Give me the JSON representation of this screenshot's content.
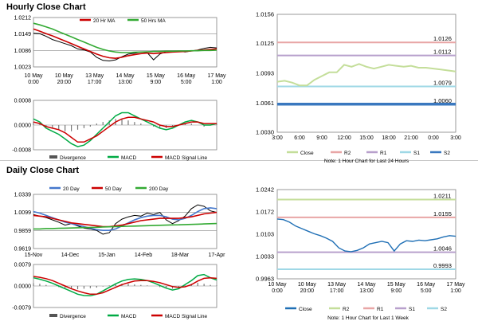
{
  "hourly_title": "Hourly Close Chart",
  "daily_title": "Daily Close Chart",
  "chart_data": [
    {
      "id": "hourly_price",
      "type": "line",
      "title": "",
      "ylim": [
        1.0023,
        1.0212
      ],
      "ytick_labels": [
        "1.0212",
        "1.0149",
        "1.0086",
        "1.0023"
      ],
      "xtick_labels": [
        "10 May\n0:00",
        "10 May\n20:00",
        "13 May\n17:00",
        "14 May\n13:00",
        "15 May\n9:00",
        "16 May\n5:00",
        "17 May\n1:00"
      ],
      "legend": [
        "20 Hr MA",
        "50 Hrs MA"
      ],
      "series": [
        {
          "name": "Close",
          "color": "#000000",
          "values": [
            1.0152,
            1.015,
            1.014,
            1.0128,
            1.012,
            1.0112,
            1.0104,
            1.0092,
            1.0088,
            1.008,
            1.006,
            1.0048,
            1.0046,
            1.005,
            1.0062,
            1.0072,
            1.0075,
            1.008,
            1.0078,
            1.005,
            1.0072,
            1.0082,
            1.008,
            1.0083,
            1.008,
            1.0084,
            1.0088,
            1.0094,
            1.0098,
            1.0096
          ]
        },
        {
          "name": "20 Hr MA",
          "color": "#cc0000",
          "values": [
            1.0168,
            1.016,
            1.015,
            1.0142,
            1.0132,
            1.0122,
            1.0112,
            1.0102,
            1.0092,
            1.0082,
            1.0072,
            1.0064,
            1.0058,
            1.0056,
            1.006,
            1.0066,
            1.007,
            1.0074,
            1.0076,
            1.0074,
            1.0076,
            1.0078,
            1.008,
            1.0081,
            1.0082,
            1.0084,
            1.0086,
            1.0088,
            1.009,
            1.0092
          ]
        },
        {
          "name": "50 Hrs MA",
          "color": "#33aa33",
          "values": [
            1.019,
            1.0184,
            1.0176,
            1.0168,
            1.0158,
            1.0148,
            1.0138,
            1.0128,
            1.0118,
            1.0108,
            1.0098,
            1.009,
            1.0084,
            1.008,
            1.0078,
            1.0078,
            1.0079,
            1.008,
            1.0081,
            1.0082,
            1.0082,
            1.0083,
            1.0083,
            1.0084,
            1.0084,
            1.0085,
            1.0085,
            1.0086,
            1.0086,
            1.0087
          ]
        }
      ]
    },
    {
      "id": "hourly_macd",
      "type": "line",
      "ylim": [
        -0.0008,
        0.0008
      ],
      "ytick_labels": [
        "0.0008",
        "0.0000",
        "-0.0008"
      ],
      "legend": [
        "Divergence",
        "MACD",
        "MACD Signal Line"
      ],
      "divergence": [
        0.0001,
        5e-05,
        -5e-05,
        -0.0001,
        -0.00015,
        -0.0002,
        -0.0002,
        -0.00015,
        -0.0001,
        -5e-05,
        5e-05,
        0.0001,
        0.00015,
        0.0002,
        0.0002,
        0.00015,
        0.0001,
        5e-05,
        0.0,
        -5e-05,
        -0.0001,
        -0.0001,
        -5e-05,
        0.0,
        5e-05,
        5e-05,
        0.0,
        -5e-05,
        0.0,
        5e-05
      ],
      "series": [
        {
          "name": "MACD",
          "color": "#00aa44",
          "values": [
            0.0002,
            0.0001,
            -0.0001,
            -0.0002,
            -0.0003,
            -0.00045,
            -0.0006,
            -0.0007,
            -0.00065,
            -0.0005,
            -0.0003,
            -0.0001,
            0.0001,
            0.0003,
            0.0004,
            0.0004,
            0.0003,
            0.0002,
            0.0001,
            0.0,
            -0.0001,
            -0.00015,
            -0.0001,
            0.0,
            0.0001,
            0.00015,
            0.0001,
            0.0,
            0.0,
            5e-05
          ]
        },
        {
          "name": "MACD Signal Line",
          "color": "#cc0000",
          "values": [
            0.0001,
            5e-05,
            -5e-05,
            -0.0001,
            -0.00015,
            -0.00025,
            -0.0004,
            -0.00055,
            -0.00055,
            -0.00045,
            -0.00035,
            -0.0002,
            -5e-05,
            0.0001,
            0.0002,
            0.00025,
            0.00025,
            0.0002,
            0.00015,
            0.0001,
            0.0,
            -5e-05,
            -5e-05,
            0.0,
            5e-05,
            0.0001,
            0.0001,
            5e-05,
            5e-05,
            5e-05
          ]
        }
      ]
    },
    {
      "id": "hourly_24h",
      "type": "line",
      "ylim": [
        1.003,
        1.0156
      ],
      "ytick_labels": [
        "1.0156",
        "1.0125",
        "1.0093",
        "1.0061",
        "1.0030"
      ],
      "xtick_labels": [
        "3:00",
        "6:00",
        "9:00",
        "12:00",
        "15:00",
        "18:00",
        "21:00",
        "0:00",
        "3:00"
      ],
      "levels": [
        {
          "name": "R2",
          "value": 1.0126,
          "label": "1.0126",
          "color": "#e8a6a6"
        },
        {
          "name": "R1",
          "value": 1.0112,
          "label": "1.0112",
          "color": "#b8a0cc"
        },
        {
          "name": "S1",
          "value": 1.0079,
          "label": "1.0079",
          "color": "#9fd8e6"
        },
        {
          "name": "S2",
          "value": 1.006,
          "label": "1.0060",
          "color": "#3a78bf"
        }
      ],
      "series": [
        {
          "name": "Close",
          "color": "#c4de9a",
          "values": [
            1.0084,
            1.0085,
            1.0083,
            1.008,
            1.008,
            1.0086,
            1.009,
            1.0094,
            1.0094,
            1.0102,
            1.01,
            1.0103,
            1.01,
            1.0098,
            1.01,
            1.0102,
            1.0101,
            1.01,
            1.0101,
            1.0099,
            1.0099,
            1.0098,
            1.0097,
            1.0096,
            1.0095
          ]
        }
      ],
      "legend": [
        "Close",
        "R2",
        "R1",
        "S1",
        "S2"
      ],
      "note": "Note: 1 Hour Chart for Last 24 Hours"
    },
    {
      "id": "daily_price",
      "type": "line",
      "ylim": [
        0.9619,
        1.0339
      ],
      "ytick_labels": [
        "1.0339",
        "1.0099",
        "0.9859",
        "0.9619"
      ],
      "xtick_labels": [
        "15-Nov",
        "14-Dec",
        "15-Jan",
        "14-Feb",
        "18-Mar",
        "17-Apr"
      ],
      "legend": [
        "20 Day",
        "50 Day",
        "200 Day"
      ],
      "series": [
        {
          "name": "Close",
          "color": "#000000",
          "values": [
            1.007,
            1.005,
            1.003,
            1.0,
            0.997,
            0.993,
            0.995,
            0.992,
            0.989,
            0.988,
            0.986,
            0.981,
            0.983,
            0.995,
            1.001,
            1.004,
            1.006,
            1.005,
            1.009,
            1.007,
            1.01,
            1.0,
            0.995,
            0.999,
            1.005,
            1.015,
            1.02,
            1.018,
            1.012,
            1.01
          ]
        },
        {
          "name": "20 Day",
          "color": "#4477cc",
          "values": [
            1.011,
            1.009,
            1.006,
            1.003,
            1.0,
            0.997,
            0.995,
            0.993,
            0.991,
            0.989,
            0.987,
            0.986,
            0.986,
            0.988,
            0.992,
            0.996,
            1.0,
            1.003,
            1.005,
            1.006,
            1.006,
            1.004,
            1.001,
            1.0,
            1.002,
            1.006,
            1.011,
            1.015,
            1.016,
            1.015
          ]
        },
        {
          "name": "50 Day",
          "color": "#cc0000",
          "values": [
            1.006,
            1.005,
            1.004,
            1.002,
            1.0,
            0.998,
            0.996,
            0.995,
            0.994,
            0.993,
            0.992,
            0.991,
            0.991,
            0.992,
            0.993,
            0.995,
            0.997,
            0.999,
            1.0,
            1.001,
            1.002,
            1.002,
            1.002,
            1.002,
            1.003,
            1.004,
            1.006,
            1.008,
            1.009,
            1.01
          ]
        },
        {
          "name": "200 Day",
          "color": "#33aa33",
          "values": [
            0.988,
            0.988,
            0.9885,
            0.9885,
            0.9888,
            0.989,
            0.9892,
            0.9895,
            0.9897,
            0.99,
            0.9902,
            0.9905,
            0.9908,
            0.991,
            0.9913,
            0.9915,
            0.9918,
            0.992,
            0.9923,
            0.9925,
            0.9928,
            0.993,
            0.9933,
            0.9935,
            0.9938,
            0.994,
            0.9943,
            0.9946,
            0.9949,
            0.9952
          ]
        }
      ]
    },
    {
      "id": "daily_macd",
      "type": "line",
      "ylim": [
        -0.0079,
        0.0079
      ],
      "ytick_labels": [
        "0.0079",
        "0.0000",
        "-0.0079"
      ],
      "legend": [
        "Divergence",
        "MACD",
        "MACD Signal Line"
      ],
      "divergence": [
        0.001,
        0.0008,
        0.0004,
        0.0,
        -0.0004,
        -0.0008,
        -0.001,
        -0.0012,
        -0.001,
        -0.0008,
        -0.0006,
        -0.0002,
        0.0002,
        0.0006,
        0.0008,
        0.0008,
        0.0006,
        0.0004,
        0.0002,
        0.0,
        -0.0004,
        -0.0008,
        -0.001,
        -0.0006,
        0.0002,
        0.0008,
        0.0012,
        0.0008,
        0.0004,
        0.0002
      ],
      "series": [
        {
          "name": "MACD",
          "color": "#00aa44",
          "values": [
            0.003,
            0.0025,
            0.0018,
            0.001,
            0.0,
            -0.001,
            -0.002,
            -0.003,
            -0.0035,
            -0.0036,
            -0.003,
            -0.0018,
            -0.0005,
            0.0008,
            0.0018,
            0.0024,
            0.0026,
            0.0024,
            0.002,
            0.0012,
            0.0002,
            -0.0008,
            -0.0015,
            -0.001,
            0.0005,
            0.002,
            0.0038,
            0.0042,
            0.003,
            0.0022
          ]
        },
        {
          "name": "MACD Signal Line",
          "color": "#cc0000",
          "values": [
            0.0035,
            0.0032,
            0.0027,
            0.002,
            0.001,
            0.0,
            -0.001,
            -0.0018,
            -0.0025,
            -0.003,
            -0.003,
            -0.0025,
            -0.0015,
            -0.0005,
            0.0005,
            0.0012,
            0.0018,
            0.002,
            0.002,
            0.0017,
            0.0012,
            0.0005,
            -0.0002,
            -0.0005,
            -0.0003,
            0.0005,
            0.0018,
            0.0028,
            0.003,
            0.0028
          ]
        }
      ]
    },
    {
      "id": "daily_week",
      "type": "line",
      "ylim": [
        0.9963,
        1.0242
      ],
      "ytick_labels": [
        "1.0242",
        "1.0172",
        "1.0103",
        "1.0033",
        "0.9963"
      ],
      "xtick_labels": [
        "10 May\n0:00",
        "10 May\n20:00",
        "13 May\n17:00",
        "14 May\n13:00",
        "15 May\n9:00",
        "16 May\n5:00",
        "17 May\n1:00"
      ],
      "levels": [
        {
          "name": "R2",
          "value": 1.0211,
          "label": "1.0211",
          "color": "#c4de9a"
        },
        {
          "name": "R1",
          "value": 1.0155,
          "label": "1.0155",
          "color": "#e8a6a6"
        },
        {
          "name": "S1",
          "value": 1.0046,
          "label": "1.0046",
          "color": "#b8a0cc"
        },
        {
          "name": "S2",
          "value": 0.9993,
          "label": "0.9993",
          "color": "#9fd8e6"
        }
      ],
      "series": [
        {
          "name": "Close",
          "color": "#1f6fb5",
          "values": [
            1.015,
            1.0148,
            1.014,
            1.0128,
            1.012,
            1.0112,
            1.0104,
            1.0098,
            1.009,
            1.008,
            1.006,
            1.005,
            1.0048,
            1.0052,
            1.006,
            1.0072,
            1.0076,
            1.008,
            1.0076,
            1.005,
            1.0072,
            1.0082,
            1.008,
            1.0084,
            1.0082,
            1.0085,
            1.0088,
            1.0094,
            1.0098,
            1.0096
          ]
        }
      ],
      "legend": [
        "Close",
        "R2",
        "R1",
        "S1",
        "S2"
      ],
      "note": "Note: 1 Hour Chart for Last 1 Week"
    }
  ]
}
